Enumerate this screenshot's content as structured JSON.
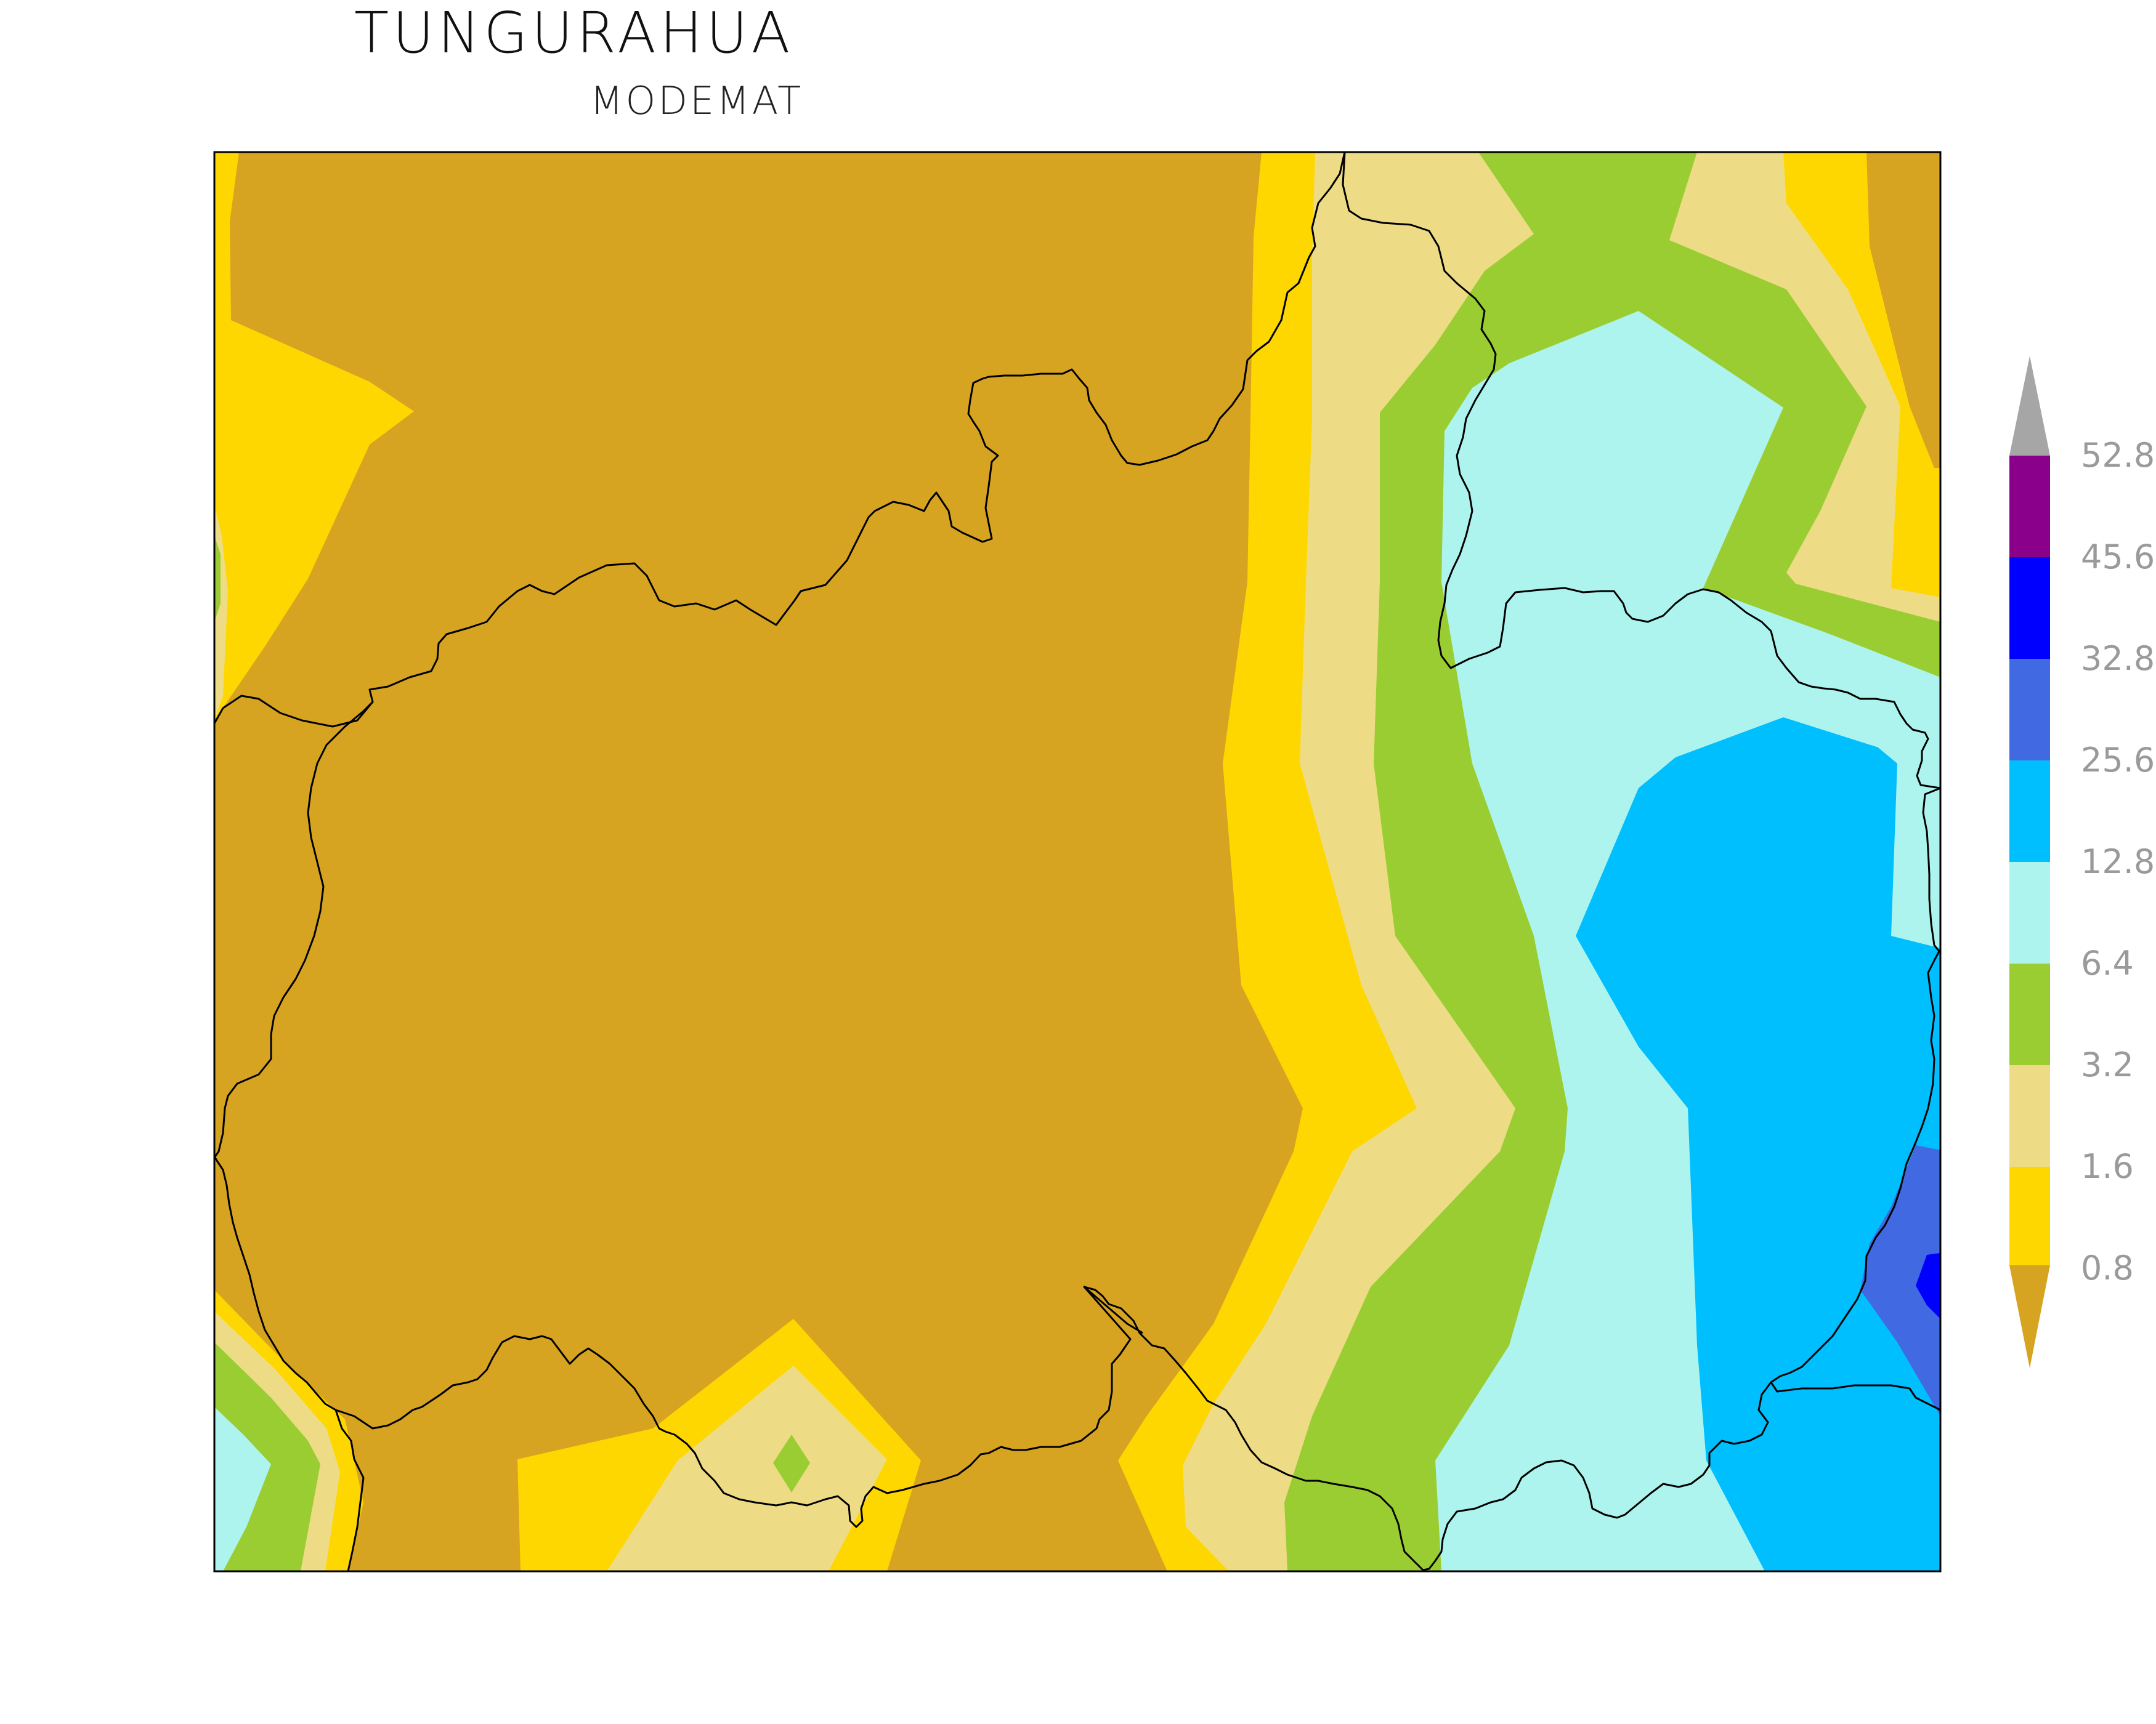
{
  "title": "TUNGURAHUA",
  "subtitle": "MODEMAT",
  "legend": {
    "labels": [
      "52.8",
      "45.6",
      "32.8",
      "25.6",
      "12.8",
      "6.4",
      "3.2",
      "1.6",
      "0.8"
    ],
    "colors": {
      "over": "#a6a6a6",
      "c52": "#8b008b",
      "c45": "#0000ff",
      "c32": "#4169e1",
      "c25": "#00bfff",
      "c12": "#adf4ee",
      "c6": "#9acd32",
      "c3": "#eddc85",
      "c1": "#ffd700",
      "under": "#d6a421"
    }
  }
}
